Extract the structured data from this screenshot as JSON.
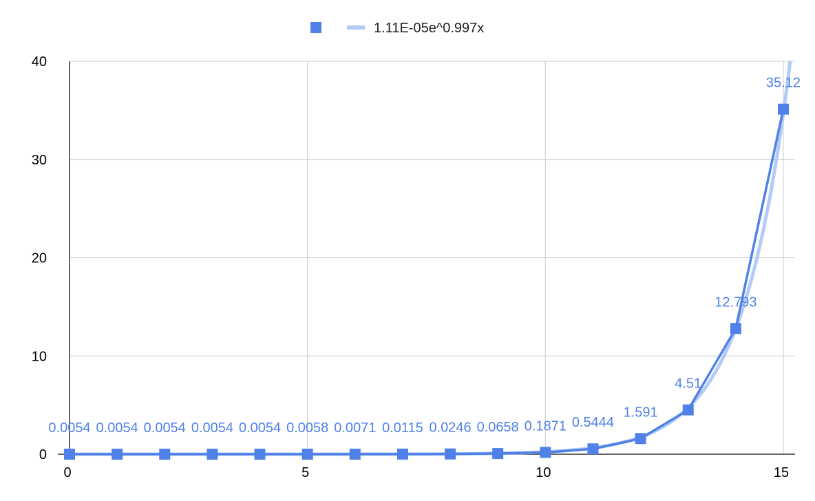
{
  "chart_data": {
    "type": "line",
    "title": "",
    "xlabel": "",
    "ylabel": "",
    "xlim": [
      0,
      15
    ],
    "ylim": [
      0,
      40
    ],
    "x_ticks": [
      0,
      5,
      10,
      15
    ],
    "y_ticks": [
      0,
      10,
      20,
      30,
      40
    ],
    "grid": true,
    "legend_position": "top",
    "series": [
      {
        "marker": "square",
        "color": "#4f81e8",
        "x": [
          0,
          1,
          2,
          3,
          4,
          5,
          6,
          7,
          8,
          9,
          10,
          11,
          12,
          13,
          14,
          15
        ],
        "values": [
          0.0054,
          0.0054,
          0.0054,
          0.0054,
          0.0054,
          0.0058,
          0.0071,
          0.0115,
          0.0246,
          0.0658,
          0.1871,
          0.5444,
          1.591,
          4.51,
          12.793,
          35.12
        ],
        "data_labels": [
          "0.0054",
          "0.0054",
          "0.0054",
          "0.0054",
          "0.0054",
          "0.0058",
          "0.0071",
          "0.0115",
          "0.0246",
          "0.0658",
          "0.1871",
          "0.5444",
          "1.591",
          "4.51",
          "12.793",
          "35.12"
        ]
      }
    ],
    "trendline": {
      "name": "1.11E-05e^0.997x",
      "type": "exponential",
      "a": 1.11e-05,
      "b": 0.997,
      "color": "#b3cbf5"
    }
  }
}
